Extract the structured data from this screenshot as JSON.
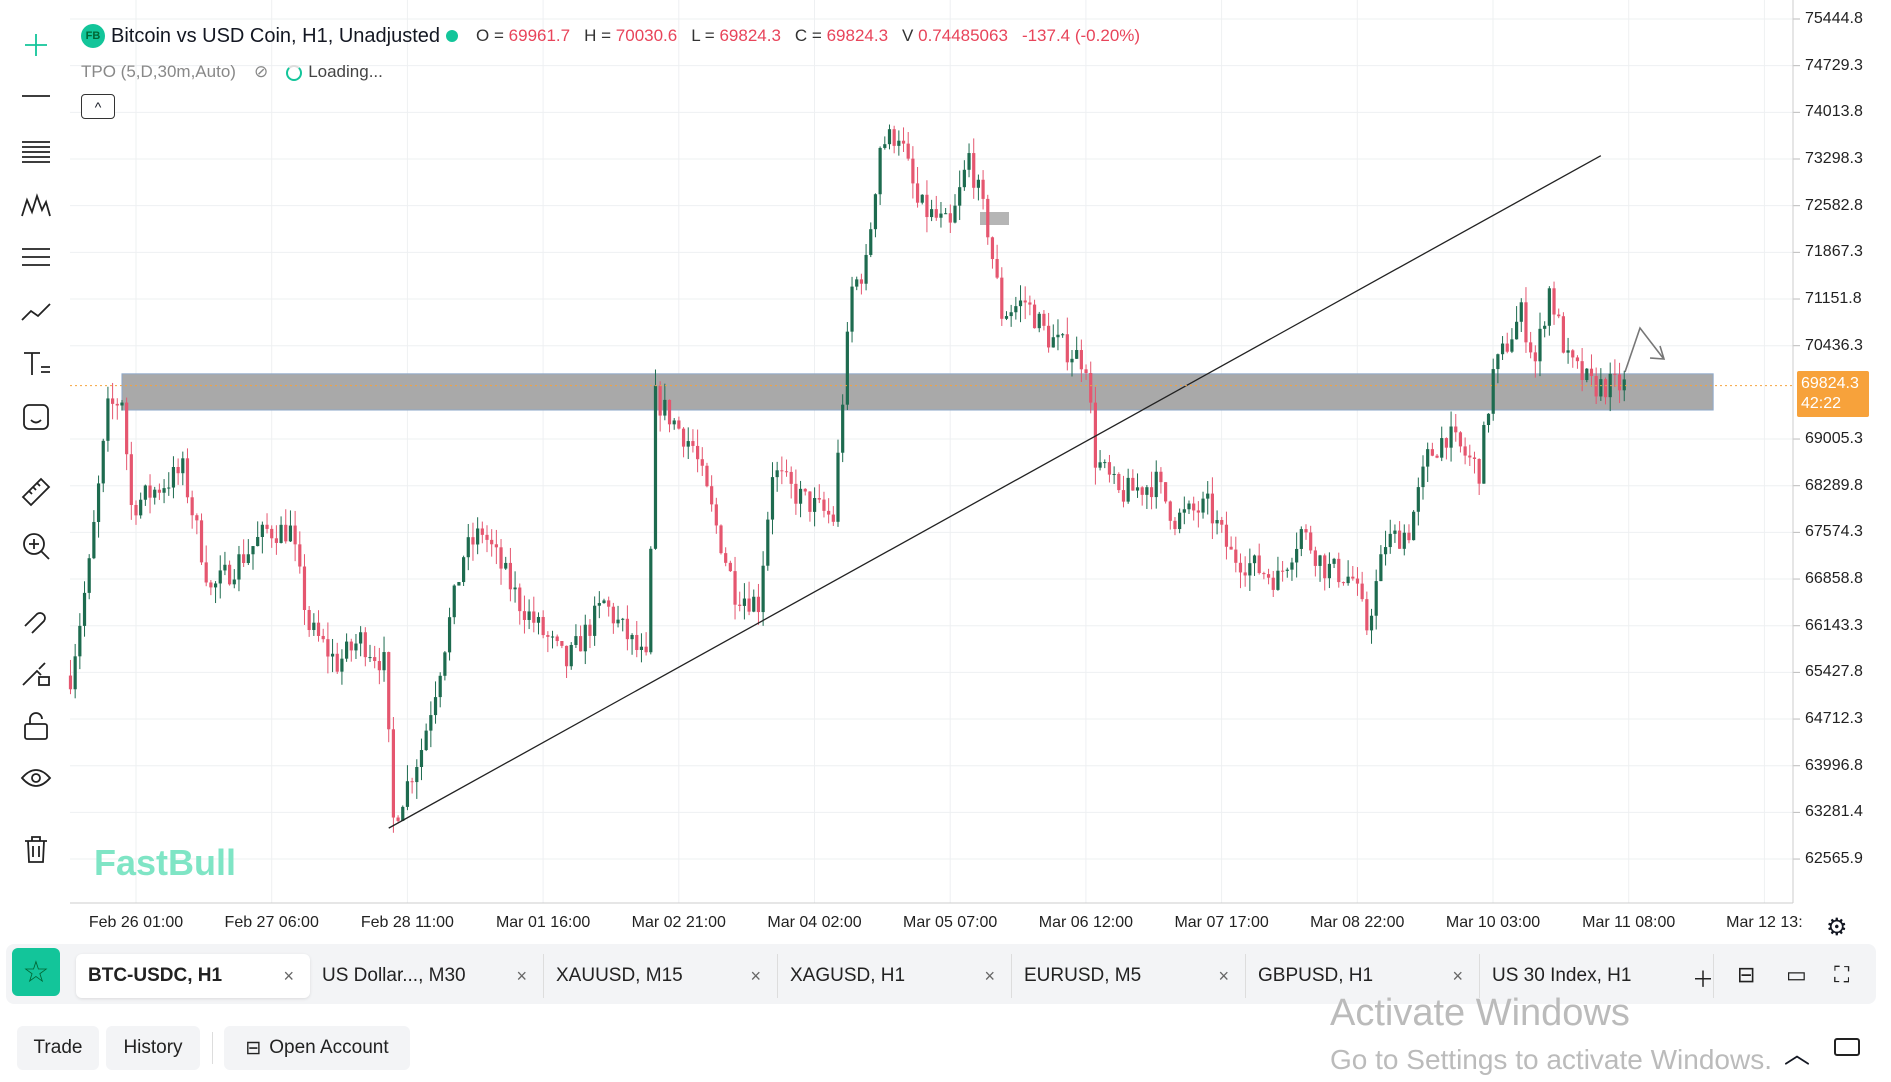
{
  "header": {
    "badge": "FB",
    "title": "Bitcoin vs USD Coin, H1, Unadjusted",
    "o_label": "O =",
    "o": "69961.7",
    "h_label": "H =",
    "h": "70030.6",
    "l_label": "L =",
    "l": "69824.3",
    "c_label": "C =",
    "c": "69824.3",
    "v_label": "V",
    "v": "0.74485063",
    "change": "-137.4 (-0.20%)"
  },
  "indicator": {
    "name": "TPO (5,D,30m,Auto)",
    "status": "Loading..."
  },
  "collapse_label": "^",
  "price_axis": [
    "75444.8",
    "74729.3",
    "74013.8",
    "73298.3",
    "72582.8",
    "71867.3",
    "71151.8",
    "70436.3",
    "69005.3",
    "68289.8",
    "67574.3",
    "66858.8",
    "66143.3",
    "65427.8",
    "64712.3",
    "63996.8",
    "63281.4",
    "62565.9"
  ],
  "price_axis_values": [
    75444.8,
    74729.3,
    74013.8,
    73298.3,
    72582.8,
    71867.3,
    71151.8,
    70436.3,
    69005.3,
    68289.8,
    67574.3,
    66858.8,
    66143.3,
    65427.8,
    64712.3,
    63996.8,
    63281.4,
    62565.9
  ],
  "last_price": {
    "value": "69824.3",
    "countdown": "42:22",
    "price": 69824.3,
    "color": "#f7a23b"
  },
  "date_axis": [
    "Feb 26 01:00",
    "Feb 27 06:00",
    "Feb 28 11:00",
    "Mar 01 16:00",
    "Mar 02 21:00",
    "Mar 04 02:00",
    "Mar 05 07:00",
    "Mar 06 12:00",
    "Mar 07 17:00",
    "Mar 08 22:00",
    "Mar 10 03:00",
    "Mar 11 08:00",
    "Mar 12 13:"
  ],
  "chart_data": {
    "type": "candlestick",
    "timeframe": "H1",
    "x_unit": "hours since Feb 26 01:00",
    "path": [
      [
        -14,
        65379
      ],
      [
        -10,
        67045
      ],
      [
        -6,
        69450
      ],
      [
        -3,
        69635
      ],
      [
        -1,
        67970
      ],
      [
        10,
        68525
      ],
      [
        16,
        66675
      ],
      [
        28,
        67600
      ],
      [
        33,
        67600
      ],
      [
        37,
        66120
      ],
      [
        43,
        65565
      ],
      [
        48,
        65935
      ],
      [
        53,
        65565
      ],
      [
        55,
        63160
      ],
      [
        61,
        64270
      ],
      [
        64,
        65195
      ],
      [
        70,
        67230
      ],
      [
        74,
        67600
      ],
      [
        82,
        66490
      ],
      [
        92,
        65565
      ],
      [
        100,
        66490
      ],
      [
        109,
        65565
      ],
      [
        110,
        67230
      ],
      [
        111,
        69635
      ],
      [
        119,
        68895
      ],
      [
        128,
        66675
      ],
      [
        133,
        66490
      ],
      [
        136,
        68525
      ],
      [
        141,
        68155
      ],
      [
        149,
        67785
      ],
      [
        151,
        69635
      ],
      [
        153,
        71300
      ],
      [
        156,
        71670
      ],
      [
        159,
        73520
      ],
      [
        163,
        73705
      ],
      [
        167,
        72595
      ],
      [
        174,
        72225
      ],
      [
        178,
        73335
      ],
      [
        182,
        72225
      ],
      [
        185,
        70930
      ],
      [
        190,
        71115
      ],
      [
        195,
        70560
      ],
      [
        203,
        70190
      ],
      [
        205,
        68710
      ],
      [
        210,
        68155
      ],
      [
        218,
        68340
      ],
      [
        222,
        67785
      ],
      [
        229,
        67970
      ],
      [
        234,
        67230
      ],
      [
        244,
        66860
      ],
      [
        249,
        67600
      ],
      [
        254,
        67045
      ],
      [
        260,
        66860
      ],
      [
        263,
        66120
      ],
      [
        267,
        67415
      ],
      [
        272,
        67600
      ],
      [
        276,
        68710
      ],
      [
        280,
        69080
      ],
      [
        287,
        68525
      ],
      [
        290,
        70005
      ],
      [
        296,
        70930
      ],
      [
        299,
        70190
      ],
      [
        302,
        71300
      ],
      [
        306,
        70190
      ],
      [
        311,
        69820
      ],
      [
        318,
        69824
      ]
    ],
    "up_color": "#1d6b4f",
    "down_color": "#e5566f",
    "zone": {
      "top": 70005,
      "bottom": 69450,
      "from_hour": -3,
      "to_hour": 337
    },
    "trendline": {
      "from": [
        54,
        63040
      ],
      "to": [
        313,
        73350
      ]
    }
  },
  "watermark": "FastBull",
  "tabs": [
    {
      "label": "BTC-USDC, H1",
      "active": true
    },
    {
      "label": "US Dollar..., M30"
    },
    {
      "label": "XAUUSD, M15"
    },
    {
      "label": "XAGUSD, H1"
    },
    {
      "label": "EURUSD, M5"
    },
    {
      "label": "GBPUSD, H1"
    },
    {
      "label": "US 30 Index, H1"
    }
  ],
  "tab_close": "×",
  "bottom": {
    "trade": "Trade",
    "history": "History",
    "open_account": "Open Account"
  },
  "os_notice": {
    "line1": "Activate Windows",
    "line2": "Go to Settings to activate Windows."
  }
}
